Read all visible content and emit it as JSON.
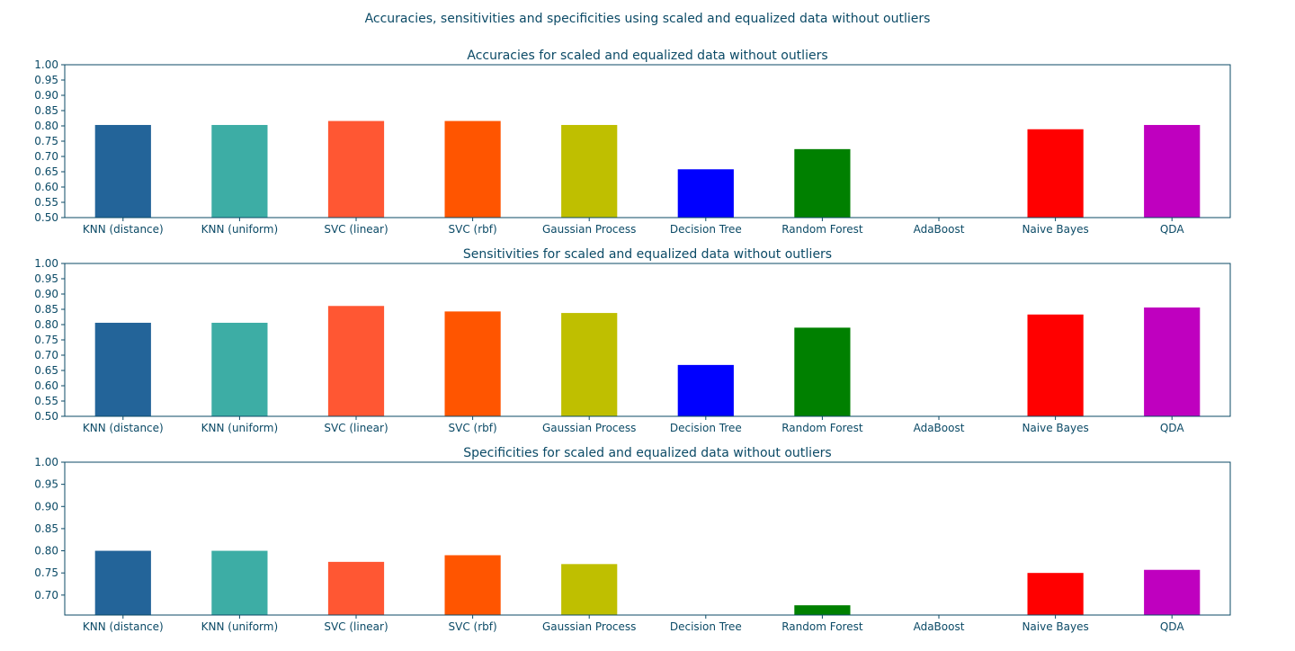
{
  "figure": {
    "title": "Accuracies, sensitivities and specificities using scaled and equalized data without outliers"
  },
  "chart_data": [
    {
      "type": "bar",
      "title": "Accuracies for scaled and equalized data without outliers",
      "xlabel": "",
      "ylabel": "",
      "categories": [
        "KNN (distance)",
        "KNN (uniform)",
        "SVC (linear)",
        "SVC (rbf)",
        "Gaussian Process",
        "Decision Tree",
        "Random Forest",
        "AdaBoost",
        "Naive Bayes",
        "QDA"
      ],
      "values": [
        0.803,
        0.803,
        0.816,
        0.816,
        0.803,
        0.658,
        0.724,
        0.5,
        0.789,
        0.803
      ],
      "colors": [
        "#236499",
        "#3dada5",
        "#ff5733",
        "#ff5500",
        "#bfbf00",
        "#0000ff",
        "#008000",
        "#ffffff",
        "#ff0000",
        "#bf00bf"
      ],
      "ylim": [
        0.5,
        1.0
      ],
      "yticks": [
        "0.50",
        "0.55",
        "0.60",
        "0.65",
        "0.70",
        "0.75",
        "0.80",
        "0.85",
        "0.90",
        "0.95",
        "1.00"
      ],
      "grid": false
    },
    {
      "type": "bar",
      "title": "Sensitivities for scaled and equalized data without outliers",
      "xlabel": "",
      "ylabel": "",
      "categories": [
        "KNN (distance)",
        "KNN (uniform)",
        "SVC (linear)",
        "SVC (rbf)",
        "Gaussian Process",
        "Decision Tree",
        "Random Forest",
        "AdaBoost",
        "Naive Bayes",
        "QDA"
      ],
      "values": [
        0.806,
        0.806,
        0.861,
        0.843,
        0.838,
        0.668,
        0.79,
        0.5,
        0.833,
        0.856
      ],
      "colors": [
        "#236499",
        "#3dada5",
        "#ff5733",
        "#ff5500",
        "#bfbf00",
        "#0000ff",
        "#008000",
        "#ffffff",
        "#ff0000",
        "#bf00bf"
      ],
      "ylim": [
        0.5,
        1.0
      ],
      "yticks": [
        "0.50",
        "0.55",
        "0.60",
        "0.65",
        "0.70",
        "0.75",
        "0.80",
        "0.85",
        "0.90",
        "0.95",
        "1.00"
      ],
      "grid": false
    },
    {
      "type": "bar",
      "title": "Specificities for scaled and equalized data without outliers",
      "xlabel": "",
      "ylabel": "",
      "categories": [
        "KNN (distance)",
        "KNN (uniform)",
        "SVC (linear)",
        "SVC (rbf)",
        "Gaussian Process",
        "Decision Tree",
        "Random Forest",
        "AdaBoost",
        "Naive Bayes",
        "QDA"
      ],
      "values": [
        0.8,
        0.8,
        0.775,
        0.79,
        0.77,
        0.65,
        0.677,
        0.65,
        0.75,
        0.757
      ],
      "colors": [
        "#236499",
        "#3dada5",
        "#ff5733",
        "#ff5500",
        "#bfbf00",
        "#0000ff",
        "#008000",
        "#ffffff",
        "#ff0000",
        "#bf00bf"
      ],
      "ylim": [
        0.655,
        1.0
      ],
      "yticks": [
        "0.70",
        "0.75",
        "0.80",
        "0.85",
        "0.90",
        "0.95",
        "1.00"
      ],
      "grid": false
    }
  ]
}
